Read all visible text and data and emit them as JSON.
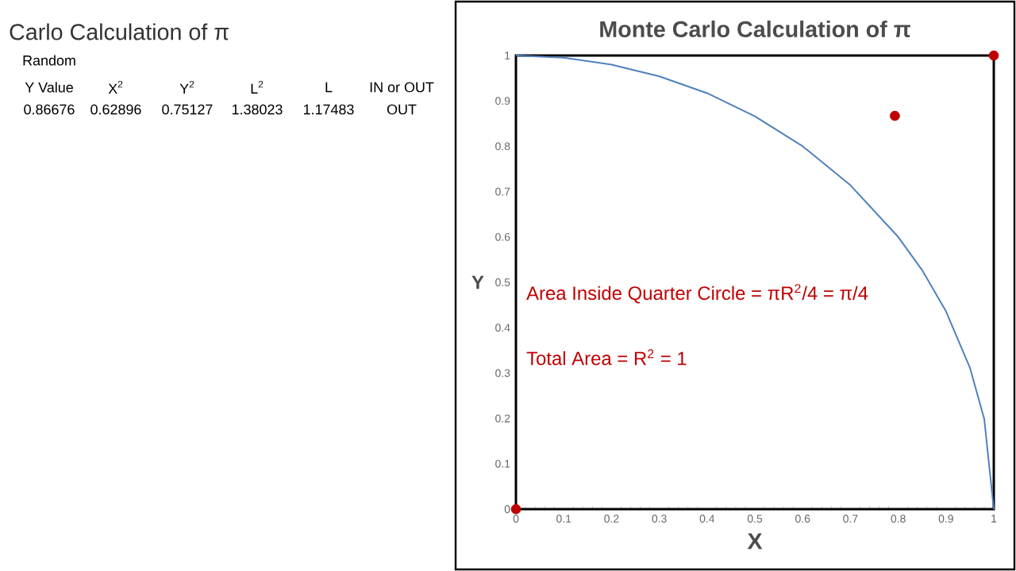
{
  "chart_data": [
    {
      "type": "other",
      "title": "Carlo Calculation of π",
      "annotations": [
        "Random",
        "Y Value",
        "X$^{2}$",
        "Y$^{2}$",
        "L$^{2}$",
        "L",
        "IN or OUT",
        "0.86676",
        "0.62896",
        "0.75127",
        "1.38023",
        "1.17483",
        "OUT"
      ]
    },
    {
      "type": "scatter",
      "title": "Monte Carlo Calculation of π",
      "xlabel": "X",
      "ylabel": "Y",
      "xlim": [
        0,
        1
      ],
      "ylim": [
        0,
        1
      ],
      "xticks": [
        0,
        0.1,
        0.2,
        0.3,
        0.4,
        0.5,
        0.6,
        0.7,
        0.8,
        0.9,
        1
      ],
      "yticks": [
        0,
        0.1,
        0.2,
        0.3,
        0.4,
        0.5,
        0.6,
        0.7,
        0.8,
        0.9,
        1
      ],
      "series": [
        {
          "type": "line",
          "color": "#4f81bd",
          "marker": "none",
          "line_style": "solid",
          "x": [
            0,
            0.1,
            0.2,
            0.3,
            0.4,
            0.5,
            0.6,
            0.7,
            0.8,
            0.85,
            0.9,
            0.95,
            0.98,
            1
          ],
          "values": [
            1,
            0.995,
            0.98,
            0.954,
            0.917,
            0.866,
            0.8,
            0.714,
            0.6,
            0.527,
            0.436,
            0.312,
            0.199,
            0
          ]
        },
        {
          "type": "scatter",
          "color": "#c00000",
          "marker": "circle",
          "x": [
            0,
            1,
            0.793
          ],
          "values": [
            0,
            1,
            0.867
          ]
        }
      ],
      "annotations": [
        "Area Inside Quarter Circle = πR$^{2}$/4 = π/4",
        "Total Area = R$^{2}$ = 1"
      ]
    }
  ]
}
